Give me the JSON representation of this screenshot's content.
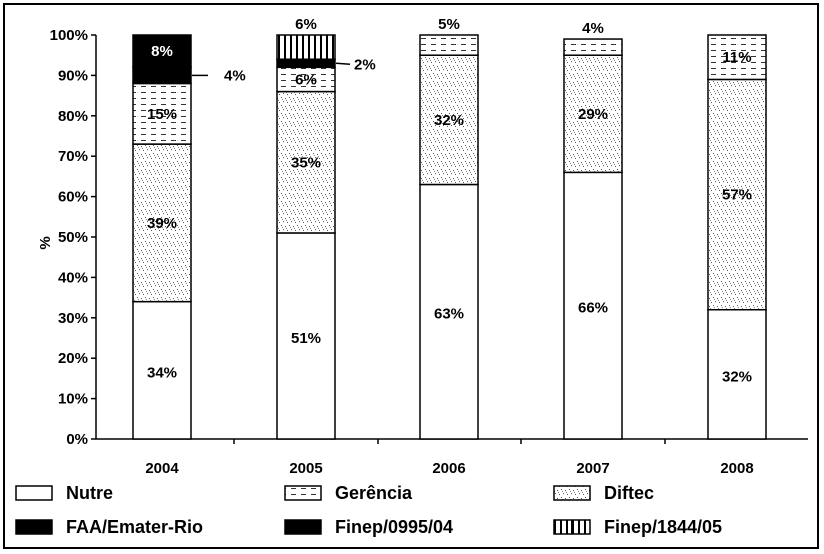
{
  "chart_data": {
    "type": "bar",
    "stacked": true,
    "categories": [
      "2004",
      "2005",
      "2006",
      "2007",
      "2008"
    ],
    "ylabel": "%",
    "ylim": [
      0,
      100
    ],
    "yticks": [
      "0%",
      "10%",
      "20%",
      "30%",
      "40%",
      "50%",
      "60%",
      "70%",
      "80%",
      "90%",
      "100%"
    ],
    "grid": false,
    "legend_position": "bottom",
    "series": [
      {
        "name": "Nutre",
        "values": [
          34,
          51,
          63,
          66,
          32
        ],
        "labels": [
          "34%",
          "51%",
          "63%",
          "66%",
          "32%"
        ],
        "pattern": "white"
      },
      {
        "name": "Diftec",
        "values": [
          39,
          35,
          32,
          29,
          57
        ],
        "labels": [
          "39%",
          "35%",
          "32%",
          "29%",
          "57%"
        ],
        "pattern": "stipple"
      },
      {
        "name": "Gerência",
        "values": [
          15,
          6,
          5,
          4,
          11
        ],
        "labels": [
          "15%",
          "6%",
          "5%",
          "4%",
          "11%"
        ],
        "pattern": "dash"
      },
      {
        "name": "Finep/0995/04",
        "values": [
          4,
          2,
          0,
          0,
          0
        ],
        "labels": [
          "4%",
          "2%",
          "",
          "",
          ""
        ],
        "pattern": "black"
      },
      {
        "name": "FAA/Emater-Rio",
        "values": [
          8,
          0,
          0,
          0,
          0
        ],
        "labels": [
          "8%",
          "",
          "",
          "",
          ""
        ],
        "pattern": "black"
      },
      {
        "name": "Finep/1844/05",
        "values": [
          0,
          6,
          0,
          0,
          0
        ],
        "labels": [
          "",
          "6%",
          "",
          "",
          ""
        ],
        "pattern": "vlines"
      }
    ],
    "legend": [
      "Nutre",
      "Gerência",
      "Diftec",
      "FAA/Emater-Rio",
      "Finep/0995/04",
      "Finep/1844/05"
    ]
  }
}
